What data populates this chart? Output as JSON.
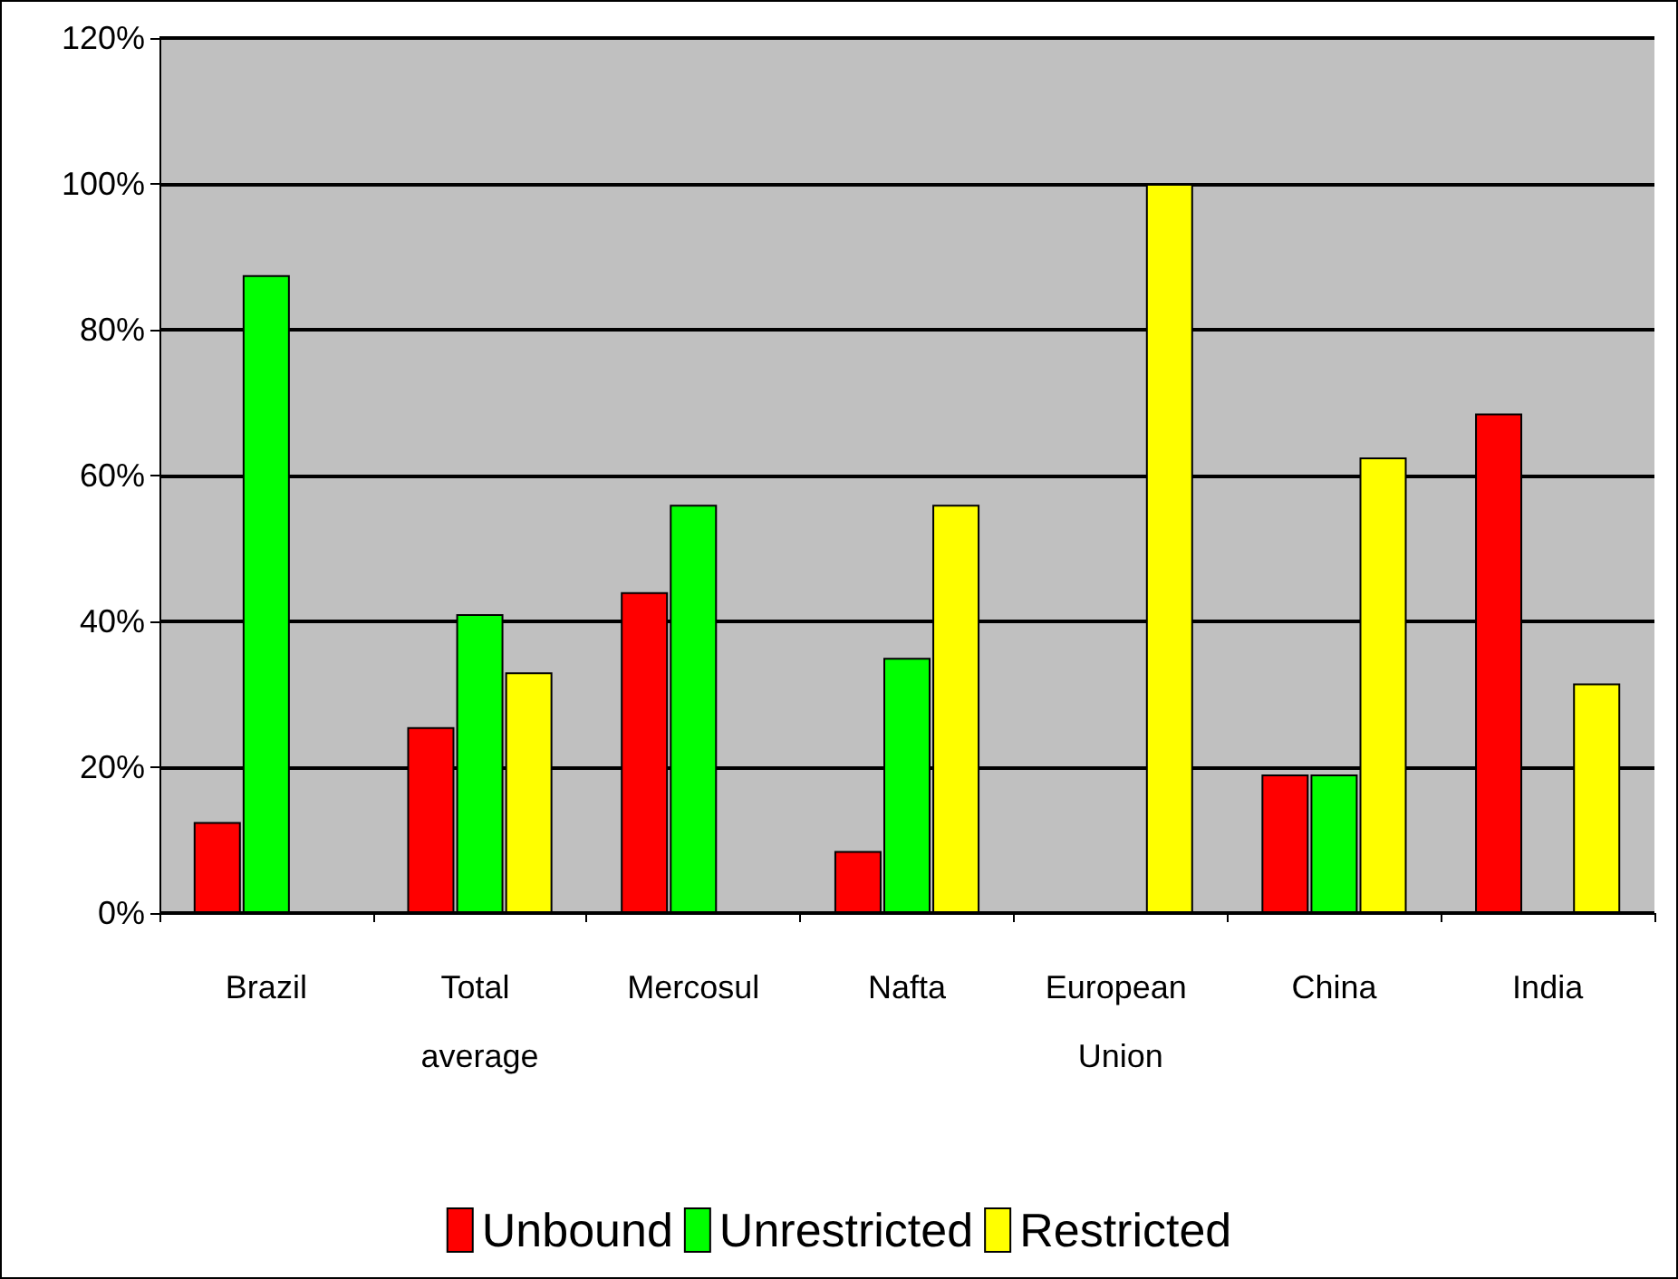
{
  "chart_data": {
    "type": "bar",
    "categories": [
      "Brazil",
      "Total average",
      "Mercosul",
      "Nafta",
      "European Union",
      "China",
      "India"
    ],
    "series": [
      {
        "name": "Unbound",
        "color": "#ff0000",
        "values": [
          12.5,
          25.5,
          44,
          8.5,
          null,
          19,
          68.5
        ]
      },
      {
        "name": "Unrestricted",
        "color": "#00ff00",
        "values": [
          87.5,
          41,
          56,
          35,
          null,
          19,
          null
        ]
      },
      {
        "name": "Restricted",
        "color": "#ffff00",
        "values": [
          null,
          33,
          null,
          56,
          100,
          62.5,
          31.5
        ]
      }
    ],
    "ylim": [
      0,
      120
    ],
    "yticks": [
      {
        "value": 0,
        "label": "0%"
      },
      {
        "value": 20,
        "label": "20%"
      },
      {
        "value": 40,
        "label": "40%"
      },
      {
        "value": 60,
        "label": "60%"
      },
      {
        "value": 80,
        "label": "80%"
      },
      {
        "value": 100,
        "label": "100%"
      },
      {
        "value": 120,
        "label": "120%"
      }
    ],
    "grid": "y",
    "legend": "bottom"
  }
}
